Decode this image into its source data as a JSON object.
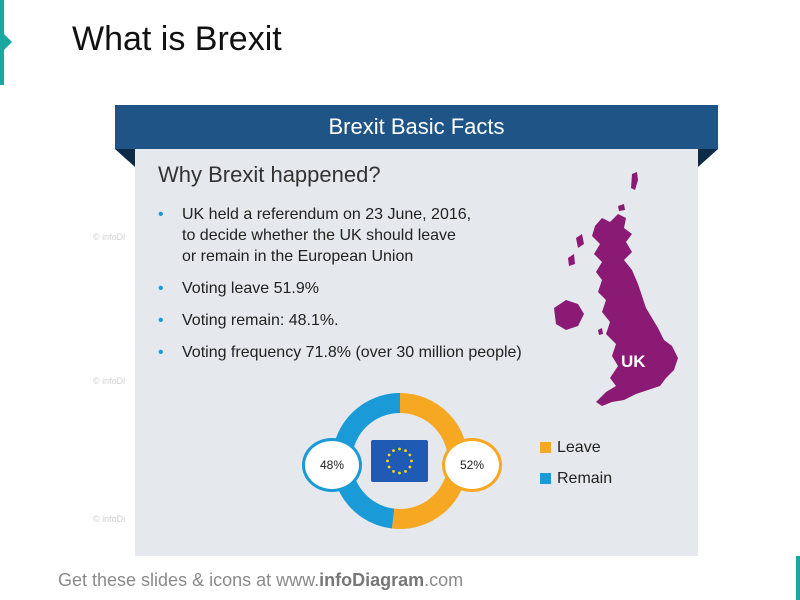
{
  "page_title": "What is Brexit",
  "ribbon_title": "Brexit Basic Facts",
  "subtitle": "Why Brexit happened?",
  "facts": [
    {
      "line1": "UK held a referendum  on 23 June, 2016,",
      "line2": "to decide whether the UK should leave",
      "line3": "or remain in the European Union"
    },
    {
      "text": "Voting leave 51.9%"
    },
    {
      "text": "Voting remain: 48.1%."
    },
    {
      "text": "Voting frequency 71.8% (over 30 million people)"
    }
  ],
  "bullet_char": "•",
  "map_label": "UK",
  "donut": {
    "leave_pct_label": "52%",
    "remain_pct_label": "48%",
    "leave_value": 51.9,
    "remain_value": 48.1
  },
  "legend": [
    {
      "label": "Leave",
      "color": "#f7a823"
    },
    {
      "label": "Remain",
      "color": "#1a9ad6"
    }
  ],
  "footer": {
    "prefix": "Get these slides & icons at www.",
    "brand": "infoDiagram",
    "suffix": ".com"
  },
  "watermark": "© infoDi",
  "colors": {
    "accent": "#1aa7a0",
    "ribbon": "#1f5486",
    "map": "#8a1a74",
    "card": "#e5e8ec",
    "leave": "#f7a823",
    "remain": "#1a9ad6",
    "flag": "#1f5bb4",
    "stars": "#ffd617"
  }
}
